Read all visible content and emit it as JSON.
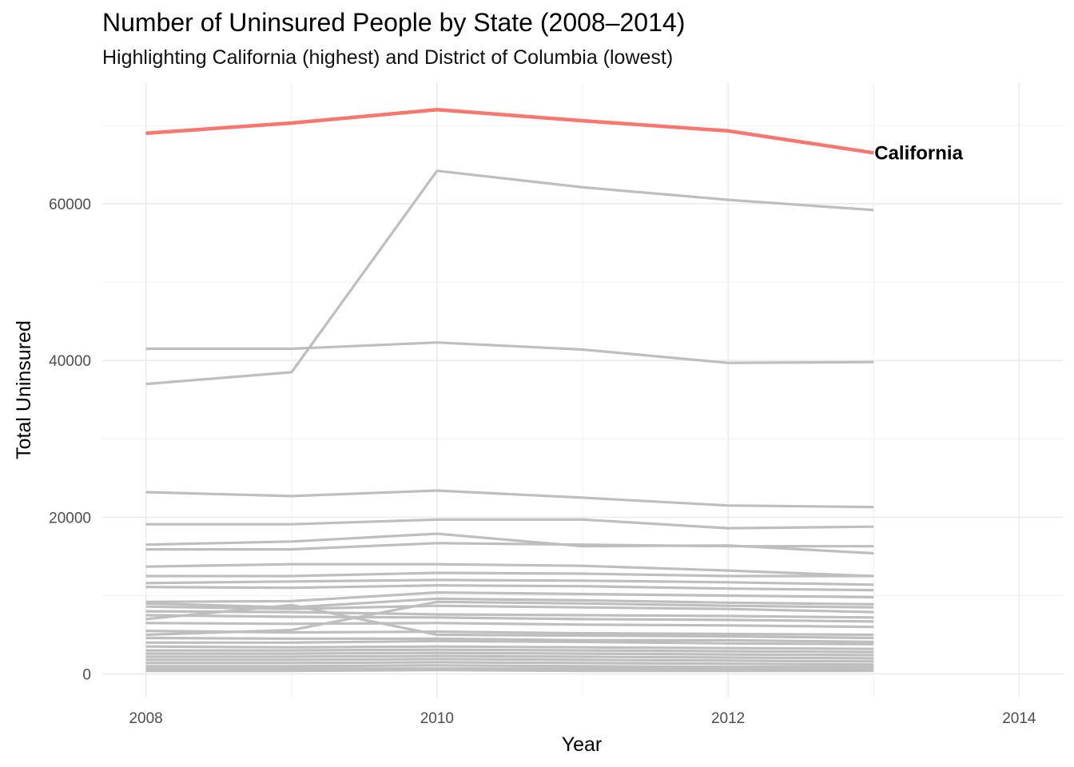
{
  "chart_data": {
    "type": "line",
    "title": "Number of Uninsured People by State (2008–2014)",
    "subtitle": "Highlighting California (highest) and District of Columbia (lowest)",
    "xlabel": "Year",
    "ylabel": "Total Uninsured",
    "xlim": [
      2007.7,
      2014.3
    ],
    "ylim": [
      -3000,
      75500
    ],
    "xticks": [
      2008,
      2010,
      2012,
      2014
    ],
    "xtick_labels": [
      "2008",
      "2010",
      "2012",
      "2014"
    ],
    "yticks": [
      0,
      20000,
      40000,
      60000
    ],
    "ytick_labels": [
      "0",
      "20000",
      "40000",
      "60000"
    ],
    "grid": true,
    "x": [
      2008,
      2009,
      2010,
      2011,
      2012,
      2013
    ],
    "highlight_color": "#F8766D",
    "other_color": "#BEBEBE",
    "highlight": {
      "name": "California",
      "label": "California",
      "values": [
        69000,
        70300,
        72000,
        70600,
        69300,
        66500
      ]
    },
    "series": [
      {
        "values": [
          41500,
          41500,
          42300,
          41400,
          39700,
          39800
        ]
      },
      {
        "values": [
          37000,
          38500,
          64200,
          62100,
          60500,
          59200
        ]
      },
      {
        "values": [
          23200,
          22700,
          23400,
          22500,
          21500,
          21300
        ]
      },
      {
        "values": [
          19100,
          19100,
          19700,
          19700,
          18600,
          18800
        ]
      },
      {
        "values": [
          16500,
          16900,
          17900,
          16300,
          16400,
          15400
        ]
      },
      {
        "values": [
          15900,
          15900,
          16700,
          16500,
          16300,
          16300
        ]
      },
      {
        "values": [
          13700,
          14000,
          14000,
          13800,
          13200,
          12500
        ]
      },
      {
        "values": [
          12500,
          12500,
          12900,
          12800,
          12500,
          12500
        ]
      },
      {
        "values": [
          11600,
          11800,
          12000,
          11900,
          11700,
          11400
        ]
      },
      {
        "values": [
          11100,
          11000,
          11300,
          11200,
          10900,
          10700
        ]
      },
      {
        "values": [
          9200,
          9300,
          10400,
          10200,
          10000,
          9800
        ]
      },
      {
        "values": [
          9000,
          8500,
          9600,
          9400,
          9100,
          8900
        ]
      },
      {
        "values": [
          8600,
          8300,
          8700,
          8500,
          8300,
          7900
        ]
      },
      {
        "values": [
          8000,
          7900,
          7600,
          7500,
          7400,
          7200
        ]
      },
      {
        "values": [
          7500,
          7300,
          7200,
          7000,
          6900,
          6700
        ]
      },
      {
        "values": [
          7000,
          8800,
          5000,
          4900,
          4800,
          4600
        ]
      },
      {
        "values": [
          6500,
          6400,
          6500,
          6300,
          6200,
          6000
        ]
      },
      {
        "values": [
          5500,
          5300,
          5400,
          5200,
          5100,
          5000
        ]
      },
      {
        "values": [
          5000,
          5600,
          9200,
          9000,
          8700,
          8500
        ]
      },
      {
        "values": [
          4600,
          4500,
          4500,
          4300,
          4300,
          4100
        ]
      },
      {
        "values": [
          4000,
          4000,
          4200,
          4100,
          3900,
          3800
        ]
      },
      {
        "values": [
          3500,
          3400,
          3500,
          3400,
          3300,
          3200
        ]
      },
      {
        "values": [
          3000,
          3000,
          3100,
          3000,
          2900,
          2800
        ]
      },
      {
        "values": [
          2600,
          2600,
          2700,
          2600,
          2500,
          2400
        ]
      },
      {
        "values": [
          2200,
          2200,
          2300,
          2200,
          2100,
          2000
        ]
      },
      {
        "values": [
          1800,
          1800,
          1900,
          1800,
          1700,
          1600
        ]
      },
      {
        "values": [
          1400,
          1400,
          1500,
          1400,
          1300,
          1200
        ]
      },
      {
        "values": [
          1000,
          1000,
          1100,
          1000,
          900,
          900
        ]
      },
      {
        "values": [
          700,
          700,
          700,
          700,
          600,
          600
        ]
      },
      {
        "values": [
          400,
          400,
          500,
          400,
          400,
          400
        ]
      }
    ]
  }
}
